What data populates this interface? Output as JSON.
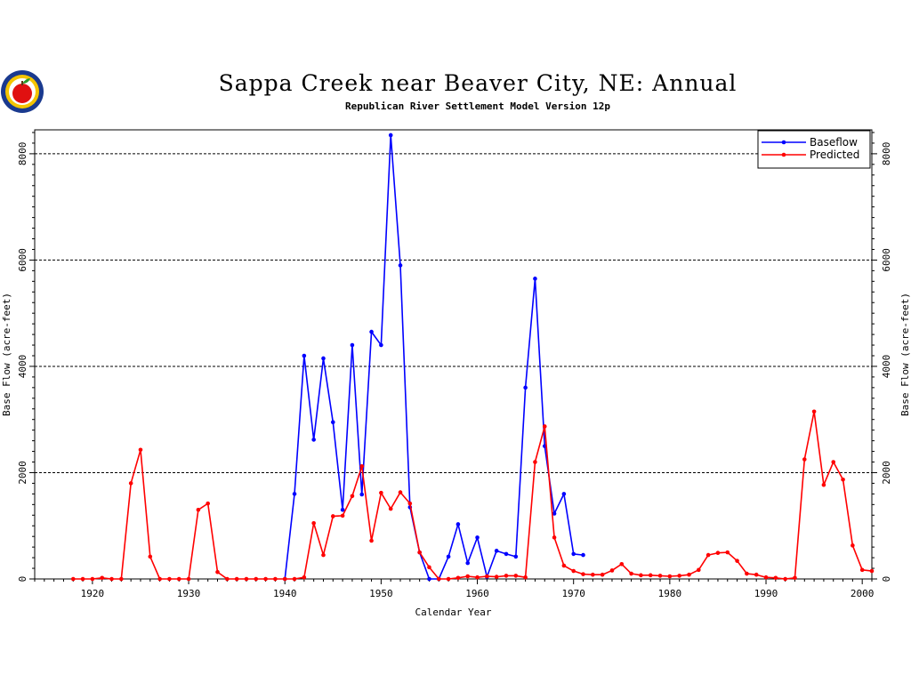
{
  "chart_data": {
    "type": "line",
    "title": "Sappa Creek near Beaver City, NE: Annual",
    "subtitle": "Republican River Settlement Model Version 12p",
    "xlabel": "Calendar Year",
    "ylabel": "Base Flow (acre-feet)",
    "ylabel_right": "Base Flow (acre-feet)",
    "xlim": [
      1914,
      2001
    ],
    "ylim": [
      0,
      8450
    ],
    "x_ticks": [
      1920,
      1930,
      1940,
      1950,
      1960,
      1970,
      1980,
      1990,
      2000
    ],
    "y_ticks": [
      0,
      2000,
      4000,
      6000,
      8000
    ],
    "grid_y": [
      2000,
      4000,
      6000,
      8000
    ],
    "legend_position": "top-right",
    "series": [
      {
        "name": "Baseflow",
        "color": "#0000ff",
        "points": [
          [
            1940,
            0
          ],
          [
            1941,
            1600
          ],
          [
            1942,
            4200
          ],
          [
            1943,
            2620
          ],
          [
            1944,
            4150
          ],
          [
            1945,
            2950
          ],
          [
            1946,
            1300
          ],
          [
            1947,
            4400
          ],
          [
            1948,
            1590
          ],
          [
            1949,
            4650
          ],
          [
            1950,
            4400
          ],
          [
            1951,
            8350
          ],
          [
            1952,
            5900
          ],
          [
            1953,
            1350
          ],
          [
            1954,
            500
          ],
          [
            1955,
            0
          ],
          [
            1956,
            0
          ],
          [
            1957,
            420
          ],
          [
            1958,
            1030
          ],
          [
            1959,
            300
          ],
          [
            1960,
            780
          ],
          [
            1961,
            40
          ],
          [
            1962,
            530
          ],
          [
            1963,
            470
          ],
          [
            1964,
            420
          ],
          [
            1965,
            3600
          ],
          [
            1966,
            5650
          ],
          [
            1967,
            2500
          ],
          [
            1968,
            1230
          ],
          [
            1969,
            1600
          ],
          [
            1970,
            470
          ],
          [
            1971,
            450
          ]
        ]
      },
      {
        "name": "Predicted",
        "color": "#ff0000",
        "points": [
          [
            1918,
            0
          ],
          [
            1919,
            0
          ],
          [
            1920,
            0
          ],
          [
            1921,
            20
          ],
          [
            1922,
            0
          ],
          [
            1923,
            0
          ],
          [
            1924,
            1800
          ],
          [
            1925,
            2430
          ],
          [
            1926,
            420
          ],
          [
            1927,
            0
          ],
          [
            1928,
            0
          ],
          [
            1929,
            0
          ],
          [
            1930,
            0
          ],
          [
            1931,
            1300
          ],
          [
            1932,
            1420
          ],
          [
            1933,
            130
          ],
          [
            1934,
            0
          ],
          [
            1935,
            0
          ],
          [
            1936,
            0
          ],
          [
            1937,
            0
          ],
          [
            1938,
            0
          ],
          [
            1939,
            0
          ],
          [
            1940,
            0
          ],
          [
            1941,
            0
          ],
          [
            1942,
            30
          ],
          [
            1943,
            1050
          ],
          [
            1944,
            450
          ],
          [
            1945,
            1180
          ],
          [
            1946,
            1190
          ],
          [
            1947,
            1560
          ],
          [
            1948,
            2120
          ],
          [
            1949,
            720
          ],
          [
            1950,
            1620
          ],
          [
            1951,
            1320
          ],
          [
            1952,
            1630
          ],
          [
            1953,
            1420
          ],
          [
            1954,
            500
          ],
          [
            1955,
            220
          ],
          [
            1956,
            0
          ],
          [
            1957,
            0
          ],
          [
            1958,
            20
          ],
          [
            1959,
            50
          ],
          [
            1960,
            30
          ],
          [
            1961,
            50
          ],
          [
            1962,
            40
          ],
          [
            1963,
            60
          ],
          [
            1964,
            60
          ],
          [
            1965,
            30
          ],
          [
            1966,
            2200
          ],
          [
            1967,
            2870
          ],
          [
            1968,
            780
          ],
          [
            1969,
            250
          ],
          [
            1970,
            150
          ],
          [
            1971,
            90
          ],
          [
            1972,
            80
          ],
          [
            1973,
            80
          ],
          [
            1974,
            160
          ],
          [
            1975,
            280
          ],
          [
            1976,
            100
          ],
          [
            1977,
            70
          ],
          [
            1978,
            70
          ],
          [
            1979,
            60
          ],
          [
            1980,
            50
          ],
          [
            1981,
            60
          ],
          [
            1982,
            80
          ],
          [
            1983,
            170
          ],
          [
            1984,
            450
          ],
          [
            1985,
            490
          ],
          [
            1986,
            500
          ],
          [
            1987,
            340
          ],
          [
            1988,
            100
          ],
          [
            1989,
            80
          ],
          [
            1990,
            30
          ],
          [
            1991,
            20
          ],
          [
            1992,
            0
          ],
          [
            1993,
            20
          ],
          [
            1994,
            2250
          ],
          [
            1995,
            3150
          ],
          [
            1996,
            1770
          ],
          [
            1997,
            2200
          ],
          [
            1998,
            1870
          ],
          [
            1999,
            630
          ],
          [
            2000,
            170
          ],
          [
            2001,
            150
          ]
        ]
      }
    ]
  },
  "logo": {
    "icon": "apple-logo-icon"
  }
}
